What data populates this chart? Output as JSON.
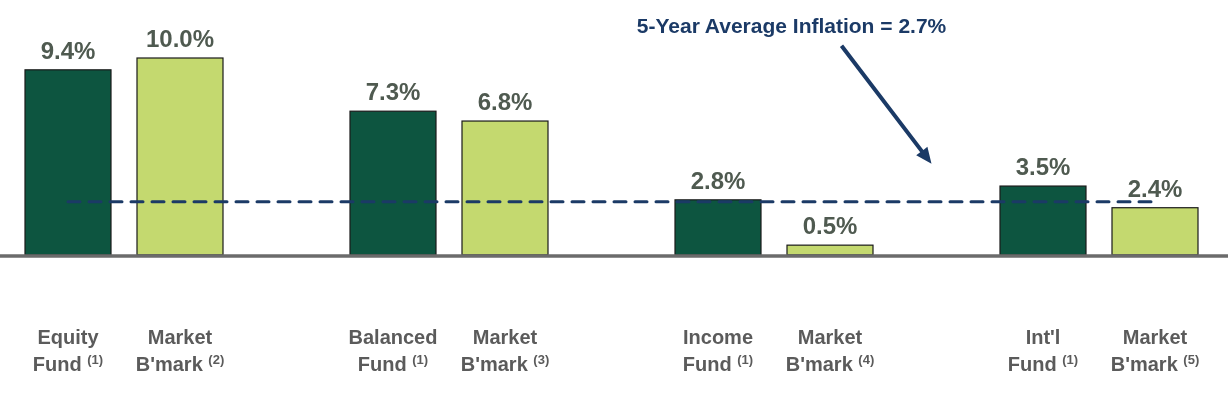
{
  "chart_data": {
    "type": "bar",
    "categories": [
      "Equity Fund $^{(1)}$",
      "Market B'mark $^{(2)}$",
      "Balanced Fund $^{(1)}$",
      "Market B'mark $^{(3)}$",
      "Income Fund $^{(1)}$",
      "Market B'mark $^{(4)}$",
      "Int'l Fund $^{(1)}$",
      "Market B'mark $^{(5)}$"
    ],
    "values": [
      9.4,
      10.0,
      7.3,
      6.8,
      2.8,
      0.5,
      3.5,
      2.4
    ],
    "colors": [
      "#0d5540",
      "#c4d96f",
      "#0d5540",
      "#c4d96f",
      "#0d5540",
      "#c4d96f",
      "#0d5540",
      "#c4d96f"
    ],
    "value_labels": [
      "9.4%",
      "10.0%",
      "7.3%",
      "6.8%",
      "2.8%",
      "0.5%",
      "3.5%",
      "2.4%"
    ],
    "ref_lines": [
      {
        "axis": "y",
        "value": 2.7,
        "label": "5-Year Average Inflation = 2.7%",
        "color": "#1b3a66",
        "line_style": "dashed"
      }
    ]
  }
}
